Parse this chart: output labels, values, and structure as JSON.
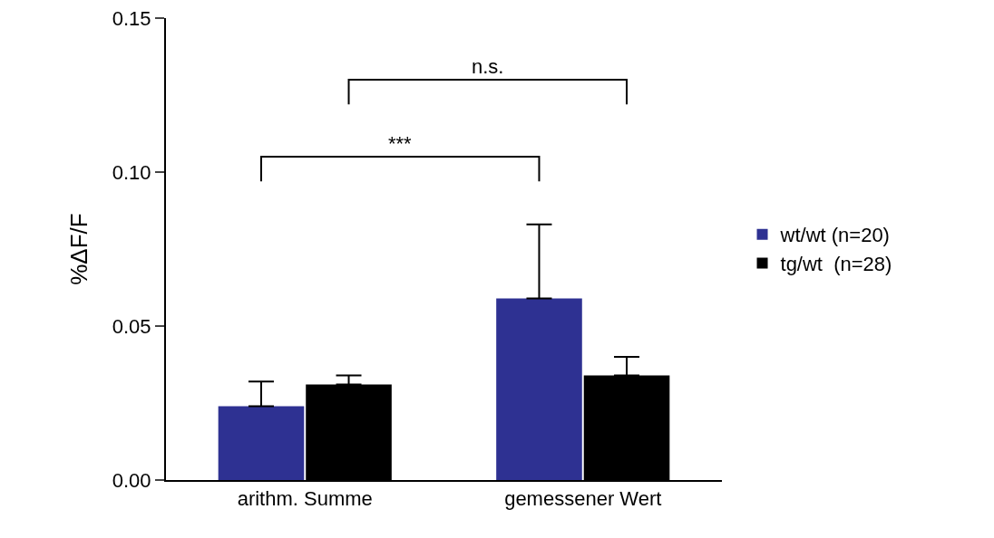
{
  "chart_data": {
    "type": "bar",
    "ylabel": "%ΔF/F",
    "categories": [
      "arithm. Summe",
      "gemessener Wert"
    ],
    "series": [
      {
        "name": "wt/wt (n=20)",
        "color": "#2e3192",
        "values": [
          0.024,
          0.059
        ],
        "errors": [
          [
            0.024,
            0.032
          ],
          [
            0.059,
            0.083
          ]
        ]
      },
      {
        "name": "tg/wt  (n=28)",
        "color": "#000000",
        "values": [
          0.031,
          0.034
        ],
        "errors": [
          [
            0.031,
            0.034
          ],
          [
            0.034,
            0.04
          ]
        ]
      }
    ],
    "ylim": [
      0,
      0.15
    ],
    "yticks": [
      {
        "value": 0,
        "label": "0.00"
      },
      {
        "value": 0.05,
        "label": "0.05"
      },
      {
        "value": 0.1,
        "label": "0.10"
      },
      {
        "value": 0.15,
        "label": "0.15"
      }
    ],
    "grid": false,
    "legend": "right",
    "annotations": [
      "***",
      "n.s."
    ]
  }
}
